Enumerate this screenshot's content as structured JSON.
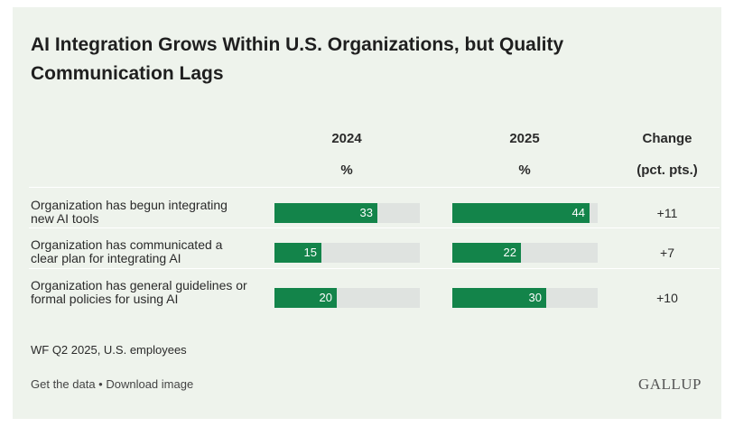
{
  "header": {
    "title": "AI Integration Grows Within U.S. Organizations, but Quality Communication Lags"
  },
  "columns": {
    "year1": "2024",
    "year1_unit": "%",
    "year2": "2025",
    "year2_unit": "%",
    "change": "Change",
    "change_unit": "(pct. pts.)"
  },
  "chart_data": {
    "type": "bar",
    "title": "AI Integration Grows Within U.S. Organizations, but Quality Communication Lags",
    "categories": [
      "Organization has begun integrating new AI tools",
      "Organization has communicated a clear plan for integrating AI",
      "Organization has general guidelines or formal policies for using AI"
    ],
    "series": [
      {
        "name": "2024",
        "values": [
          33,
          15,
          20
        ]
      },
      {
        "name": "2025",
        "values": [
          44,
          22,
          30
        ]
      }
    ],
    "change": [
      "+11",
      "+7",
      "+10"
    ],
    "unit": "%",
    "ylim": [
      0,
      100
    ],
    "colors": {
      "fill": "#13844a",
      "track": "#dfe3e0"
    }
  },
  "footer": {
    "source": "WF Q2 2025, U.S. employees",
    "get_data": "Get the data",
    "separator": " • ",
    "download": "Download image",
    "logo": "GALLUP"
  }
}
